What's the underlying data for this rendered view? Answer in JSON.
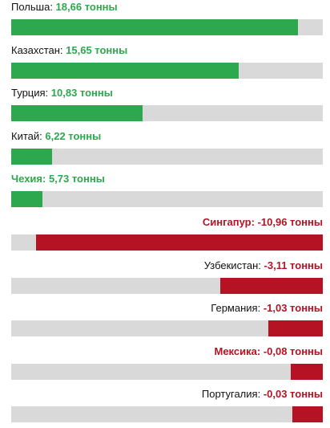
{
  "chart_data": {
    "type": "bar",
    "orientation": "horizontal",
    "unit": "тонны",
    "colors": {
      "positive": "#2ea84f",
      "negative": "#b51324",
      "track": "#d9d9d9"
    },
    "bars": [
      {
        "name": "Польша",
        "label": "18,66 тонны",
        "value": 18.66,
        "sign": "pos",
        "highlight": false,
        "bar_fraction": 0.92
      },
      {
        "name": "Казахстан",
        "label": "15,65 тонны",
        "value": 15.65,
        "sign": "pos",
        "highlight": false,
        "bar_fraction": 0.729
      },
      {
        "name": "Турция",
        "label": "10,83 тонны",
        "value": 10.83,
        "sign": "pos",
        "highlight": false,
        "bar_fraction": 0.422
      },
      {
        "name": "Китай",
        "label": "6,22 тонны",
        "value": 6.22,
        "sign": "pos",
        "highlight": false,
        "bar_fraction": 0.131
      },
      {
        "name": "Чехия",
        "label": "5,73 тонны",
        "value": 5.73,
        "sign": "pos",
        "highlight": true,
        "bar_fraction": 0.1
      },
      {
        "name": "Сингапур",
        "label": "-10,96 тонны",
        "value": -10.96,
        "sign": "neg",
        "highlight": true,
        "bar_fraction": 0.92
      },
      {
        "name": "Узбекистан",
        "label": "-3,11 тонны",
        "value": -3.11,
        "sign": "neg",
        "highlight": false,
        "bar_fraction": 0.329
      },
      {
        "name": "Германия",
        "label": "-1,03 тонны",
        "value": -1.03,
        "sign": "neg",
        "highlight": false,
        "bar_fraction": 0.175
      },
      {
        "name": "Мексика",
        "label": "-0,08 тонны",
        "value": -0.08,
        "sign": "neg",
        "highlight": true,
        "bar_fraction": 0.103
      },
      {
        "name": "Португалия",
        "label": "-0,03 тонны",
        "value": -0.03,
        "sign": "neg",
        "highlight": false,
        "bar_fraction": 0.098
      }
    ]
  }
}
